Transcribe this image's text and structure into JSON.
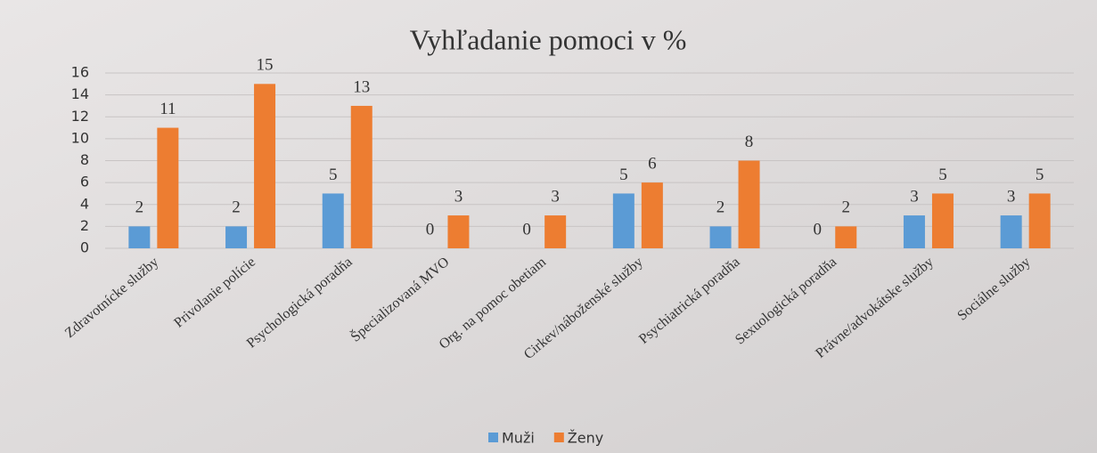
{
  "chart_data": {
    "type": "bar",
    "title": "Vyhľadanie pomoci v %",
    "categories": [
      "Zdravotnícke služby",
      "Privolanie polície",
      "Psychologická poradňa",
      "Špecializovaná MVO",
      "Org. na pomoc obetiam",
      "Cirkev/náboženské služby",
      "Psychiatrická poradňa",
      "Sexuologická poradňa",
      "Právne/advokátske služby",
      "Sociálne služby"
    ],
    "series": [
      {
        "name": "Muži",
        "color": "#5b9bd5",
        "values": [
          2,
          2,
          5,
          0,
          0,
          5,
          2,
          0,
          3,
          3
        ]
      },
      {
        "name": "Ženy",
        "color": "#ed7d31",
        "values": [
          11,
          15,
          13,
          3,
          3,
          6,
          8,
          2,
          5,
          5
        ]
      }
    ],
    "ylim": [
      0,
      16
    ],
    "yticks": [
      0,
      2,
      4,
      6,
      8,
      10,
      12,
      14,
      16
    ],
    "grid": true,
    "legend": "bottom"
  }
}
